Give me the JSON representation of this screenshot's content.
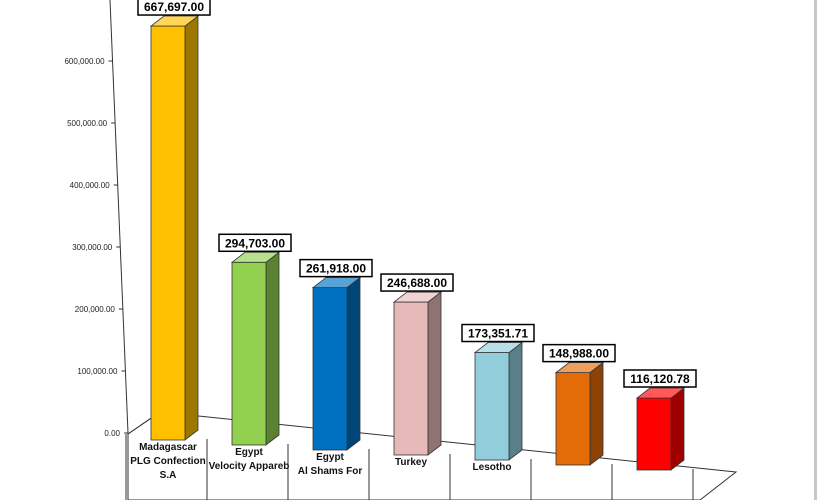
{
  "chart_data": {
    "type": "bar",
    "style": "3d-column",
    "title": "",
    "xlabel": "",
    "ylabel": "",
    "ylim": [
      0,
      700000
    ],
    "yticks": [
      "0.00",
      "100,000.00",
      "200,000.00",
      "300,000.00",
      "400,000.00",
      "500,000.00",
      "600,000.00"
    ],
    "grid": false,
    "legend": "none",
    "categories": [
      {
        "line1": "Madagascar",
        "line2": "PLG Confection",
        "line3": "S.A"
      },
      {
        "line1": "Egypt",
        "line2": "Velocity Appareb",
        "line3": ""
      },
      {
        "line1": "Egypt",
        "line2": "Al Shams For",
        "line3": ""
      },
      {
        "line1": "Turkey",
        "line2": "",
        "line3": ""
      },
      {
        "line1": "Lesotho",
        "line2": "",
        "line3": ""
      },
      {
        "line1": "",
        "line2": "",
        "line3": ""
      },
      {
        "line1": "",
        "line2": "",
        "line3": ""
      }
    ],
    "values": [
      667697.0,
      294703.0,
      261918.0,
      246688.0,
      173351.71,
      148988.0,
      116120.78
    ],
    "data_labels": [
      "667,697.00",
      "294,703.00",
      "261,918.00",
      "246,688.00",
      "173,351.71",
      "148,988.00",
      "116,120.78"
    ],
    "colors": [
      "#FFC000",
      "#92D050",
      "#0070C0",
      "#E6B9B8",
      "#92CDDC",
      "#E36C09",
      "#FF0000"
    ]
  }
}
